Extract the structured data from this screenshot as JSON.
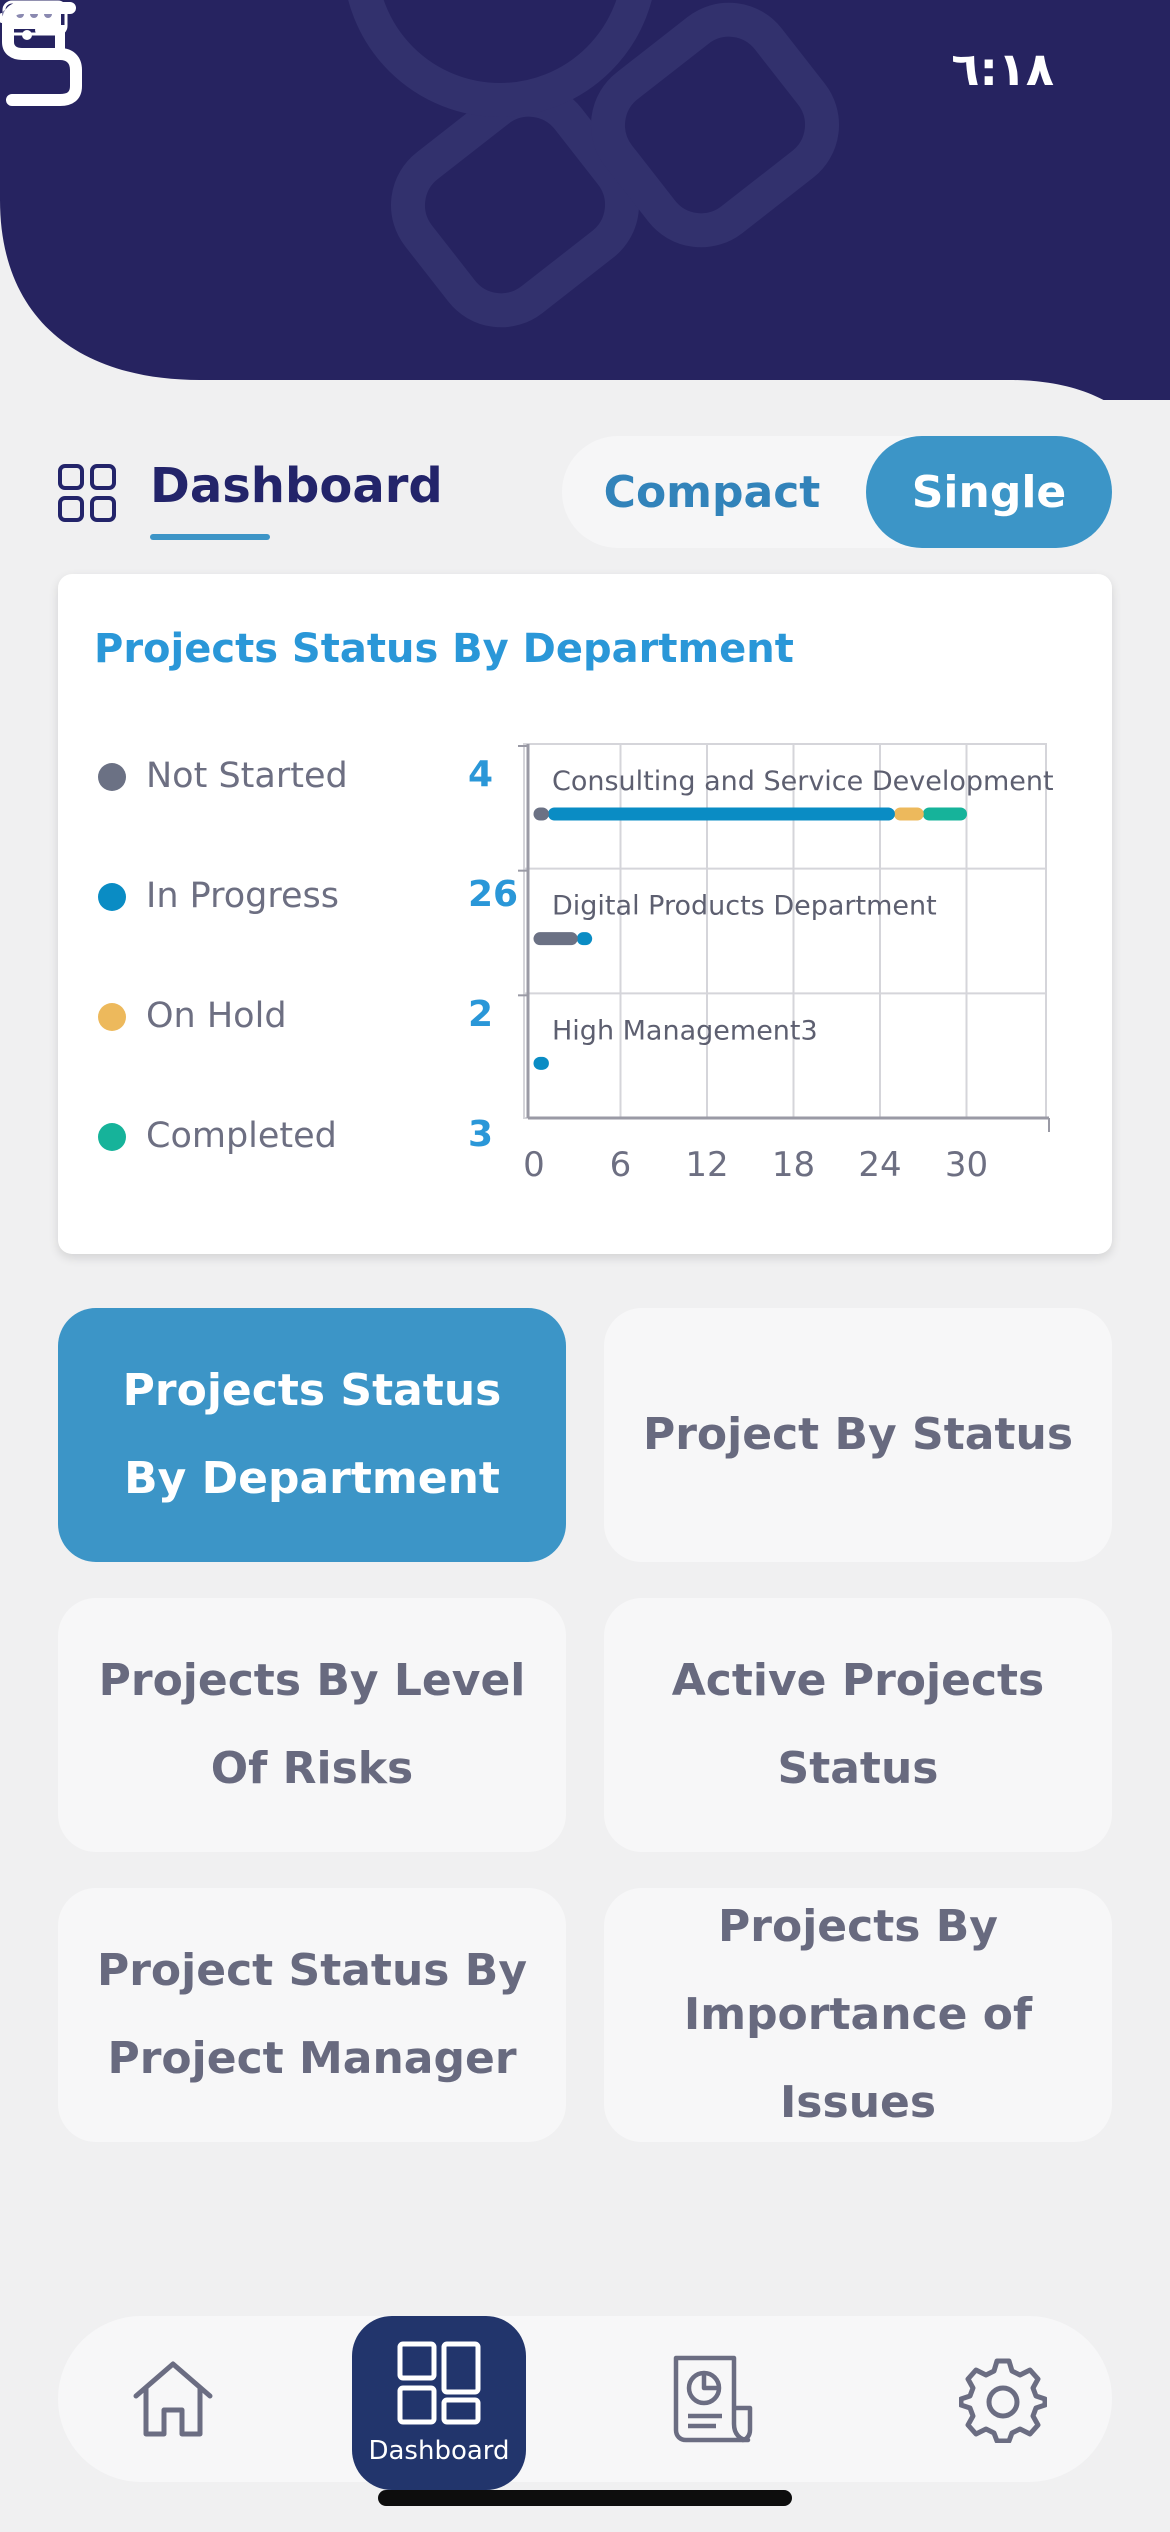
{
  "status_bar": {
    "time": "٦:١٨"
  },
  "header": {
    "title": "Dashboard"
  },
  "view_toggle": {
    "compact": "Compact",
    "single": "Single",
    "selected": "Single"
  },
  "card": {
    "title": "Projects Status By Department",
    "legend": [
      {
        "label": "Not Started",
        "value": "4",
        "color": "#6b7184"
      },
      {
        "label": "In Progress",
        "value": "26",
        "color": "#0a8cc4"
      },
      {
        "label": "On Hold",
        "value": "2",
        "color": "#edb95c"
      },
      {
        "label": "Completed",
        "value": "3",
        "color": "#16b39a"
      }
    ]
  },
  "chart_data": {
    "type": "bar",
    "orientation": "horizontal",
    "stacked": true,
    "categories": [
      "Consulting and Service Development",
      "Digital Products Department",
      "High Management3"
    ],
    "series": [
      {
        "name": "Not Started",
        "color": "#6b7184",
        "values": [
          1,
          3,
          0
        ]
      },
      {
        "name": "In Progress",
        "color": "#0a8cc4",
        "values": [
          24,
          1,
          1
        ]
      },
      {
        "name": "On Hold",
        "color": "#edb95c",
        "values": [
          2,
          0,
          0
        ]
      },
      {
        "name": "Completed",
        "color": "#16b39a",
        "values": [
          3,
          0,
          0
        ]
      }
    ],
    "x_ticks": [
      "0",
      "6",
      "12",
      "18",
      "24",
      "30"
    ],
    "xlim": [
      0,
      36
    ],
    "grid": true
  },
  "tiles": [
    {
      "label": "Projects Status By Department",
      "active": true
    },
    {
      "label": "Project By Status",
      "active": false
    },
    {
      "label": "Projects By Level Of Risks",
      "active": false
    },
    {
      "label": "Active Projects Status",
      "active": false
    },
    {
      "label": "Project Status By Project Manager",
      "active": false
    },
    {
      "label": "Projects By Importance of Issues",
      "active": false
    }
  ],
  "bottom_nav": {
    "items": [
      {
        "icon": "home-icon"
      },
      {
        "icon": "dashboard-icon",
        "label": "Dashboard",
        "active": true
      },
      {
        "icon": "report-icon"
      },
      {
        "icon": "settings-icon"
      }
    ]
  }
}
